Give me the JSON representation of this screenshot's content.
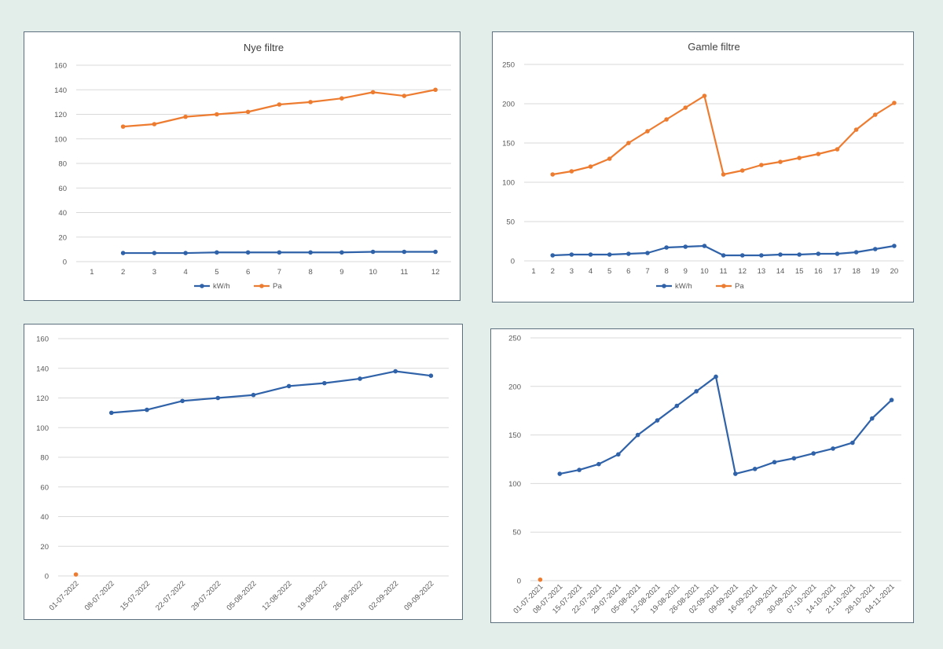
{
  "colors": {
    "blue": "#2f62a8",
    "orange": "#ee7c30"
  },
  "chart_data": [
    {
      "id": "c1",
      "type": "line",
      "title": "Nye filtre",
      "categories": [
        "1",
        "2",
        "3",
        "4",
        "5",
        "6",
        "7",
        "8",
        "9",
        "10",
        "11",
        "12"
      ],
      "ylim": [
        0,
        160
      ],
      "yticks": [
        0,
        20,
        40,
        60,
        80,
        100,
        120,
        140,
        160
      ],
      "grid": true,
      "legend": "bottom",
      "series": [
        {
          "name": "kW/h",
          "color": "#2f62a8",
          "values": [
            null,
            7,
            7,
            7,
            7.5,
            7.5,
            7.5,
            7.5,
            7.5,
            8,
            8,
            8
          ]
        },
        {
          "name": "Pa",
          "color": "#ee7c30",
          "values": [
            null,
            110,
            112,
            118,
            120,
            122,
            128,
            130,
            133,
            138,
            135,
            140
          ]
        }
      ]
    },
    {
      "id": "c2",
      "type": "line",
      "title": "Gamle filtre",
      "categories": [
        "1",
        "2",
        "3",
        "4",
        "5",
        "6",
        "7",
        "8",
        "9",
        "10",
        "11",
        "12",
        "13",
        "14",
        "15",
        "16",
        "17",
        "18",
        "19",
        "20"
      ],
      "ylim": [
        0,
        250
      ],
      "yticks": [
        0,
        50,
        100,
        150,
        200,
        250
      ],
      "grid": true,
      "legend": "bottom",
      "series": [
        {
          "name": "kW/h",
          "color": "#2f62a8",
          "values": [
            null,
            7,
            8,
            8,
            8,
            9,
            10,
            17,
            18,
            19,
            7,
            7,
            7,
            8,
            8,
            9,
            9,
            11,
            15,
            19
          ]
        },
        {
          "name": "Pa",
          "color": "#ee7c30",
          "values": [
            null,
            110,
            114,
            120,
            130,
            150,
            165,
            180,
            195,
            210,
            110,
            115,
            122,
            126,
            131,
            136,
            142,
            167,
            186,
            201
          ]
        }
      ]
    },
    {
      "id": "c3",
      "type": "line",
      "title": "",
      "categories": [
        "01-07-2022",
        "08-07-2022",
        "15-07-2022",
        "22-07-2022",
        "29-07-2022",
        "05-08-2022",
        "12-08-2022",
        "19-08-2022",
        "26-08-2022",
        "02-09-2022",
        "09-09-2022"
      ],
      "ylim": [
        0,
        160
      ],
      "yticks": [
        0,
        20,
        40,
        60,
        80,
        100,
        120,
        140,
        160
      ],
      "grid": true,
      "legend": "none",
      "series": [
        {
          "name": "",
          "color": "#2f62a8",
          "values": [
            null,
            110,
            112,
            118,
            120,
            122,
            128,
            130,
            133,
            138,
            135
          ]
        },
        {
          "name": "",
          "color": "#ee7c30",
          "values": [
            1,
            null,
            null,
            null,
            null,
            null,
            null,
            null,
            null,
            null,
            null
          ]
        }
      ]
    },
    {
      "id": "c4",
      "type": "line",
      "title": "",
      "categories": [
        "01-07-2021",
        "08-07-2021",
        "15-07-2021",
        "22-07-2021",
        "29-07-2021",
        "05-08-2021",
        "12-08-2021",
        "19-08-2021",
        "26-08-2021",
        "02-09-2021",
        "09-09-2021",
        "16-09-2021",
        "23-09-2021",
        "30-09-2021",
        "07-10-2021",
        "14-10-2021",
        "21-10-2021",
        "28-10-2021",
        "04-11-2021"
      ],
      "ylim": [
        0,
        250
      ],
      "yticks": [
        0,
        50,
        100,
        150,
        200,
        250
      ],
      "grid": true,
      "legend": "none",
      "series": [
        {
          "name": "",
          "color": "#2f62a8",
          "values": [
            null,
            110,
            114,
            120,
            130,
            150,
            165,
            180,
            195,
            210,
            110,
            115,
            122,
            126,
            131,
            136,
            142,
            167,
            186
          ]
        },
        {
          "name": "",
          "color": "#ee7c30",
          "values": [
            1,
            null,
            null,
            null,
            null,
            null,
            null,
            null,
            null,
            null,
            null,
            null,
            null,
            null,
            null,
            null,
            null,
            null,
            null
          ]
        }
      ]
    }
  ]
}
